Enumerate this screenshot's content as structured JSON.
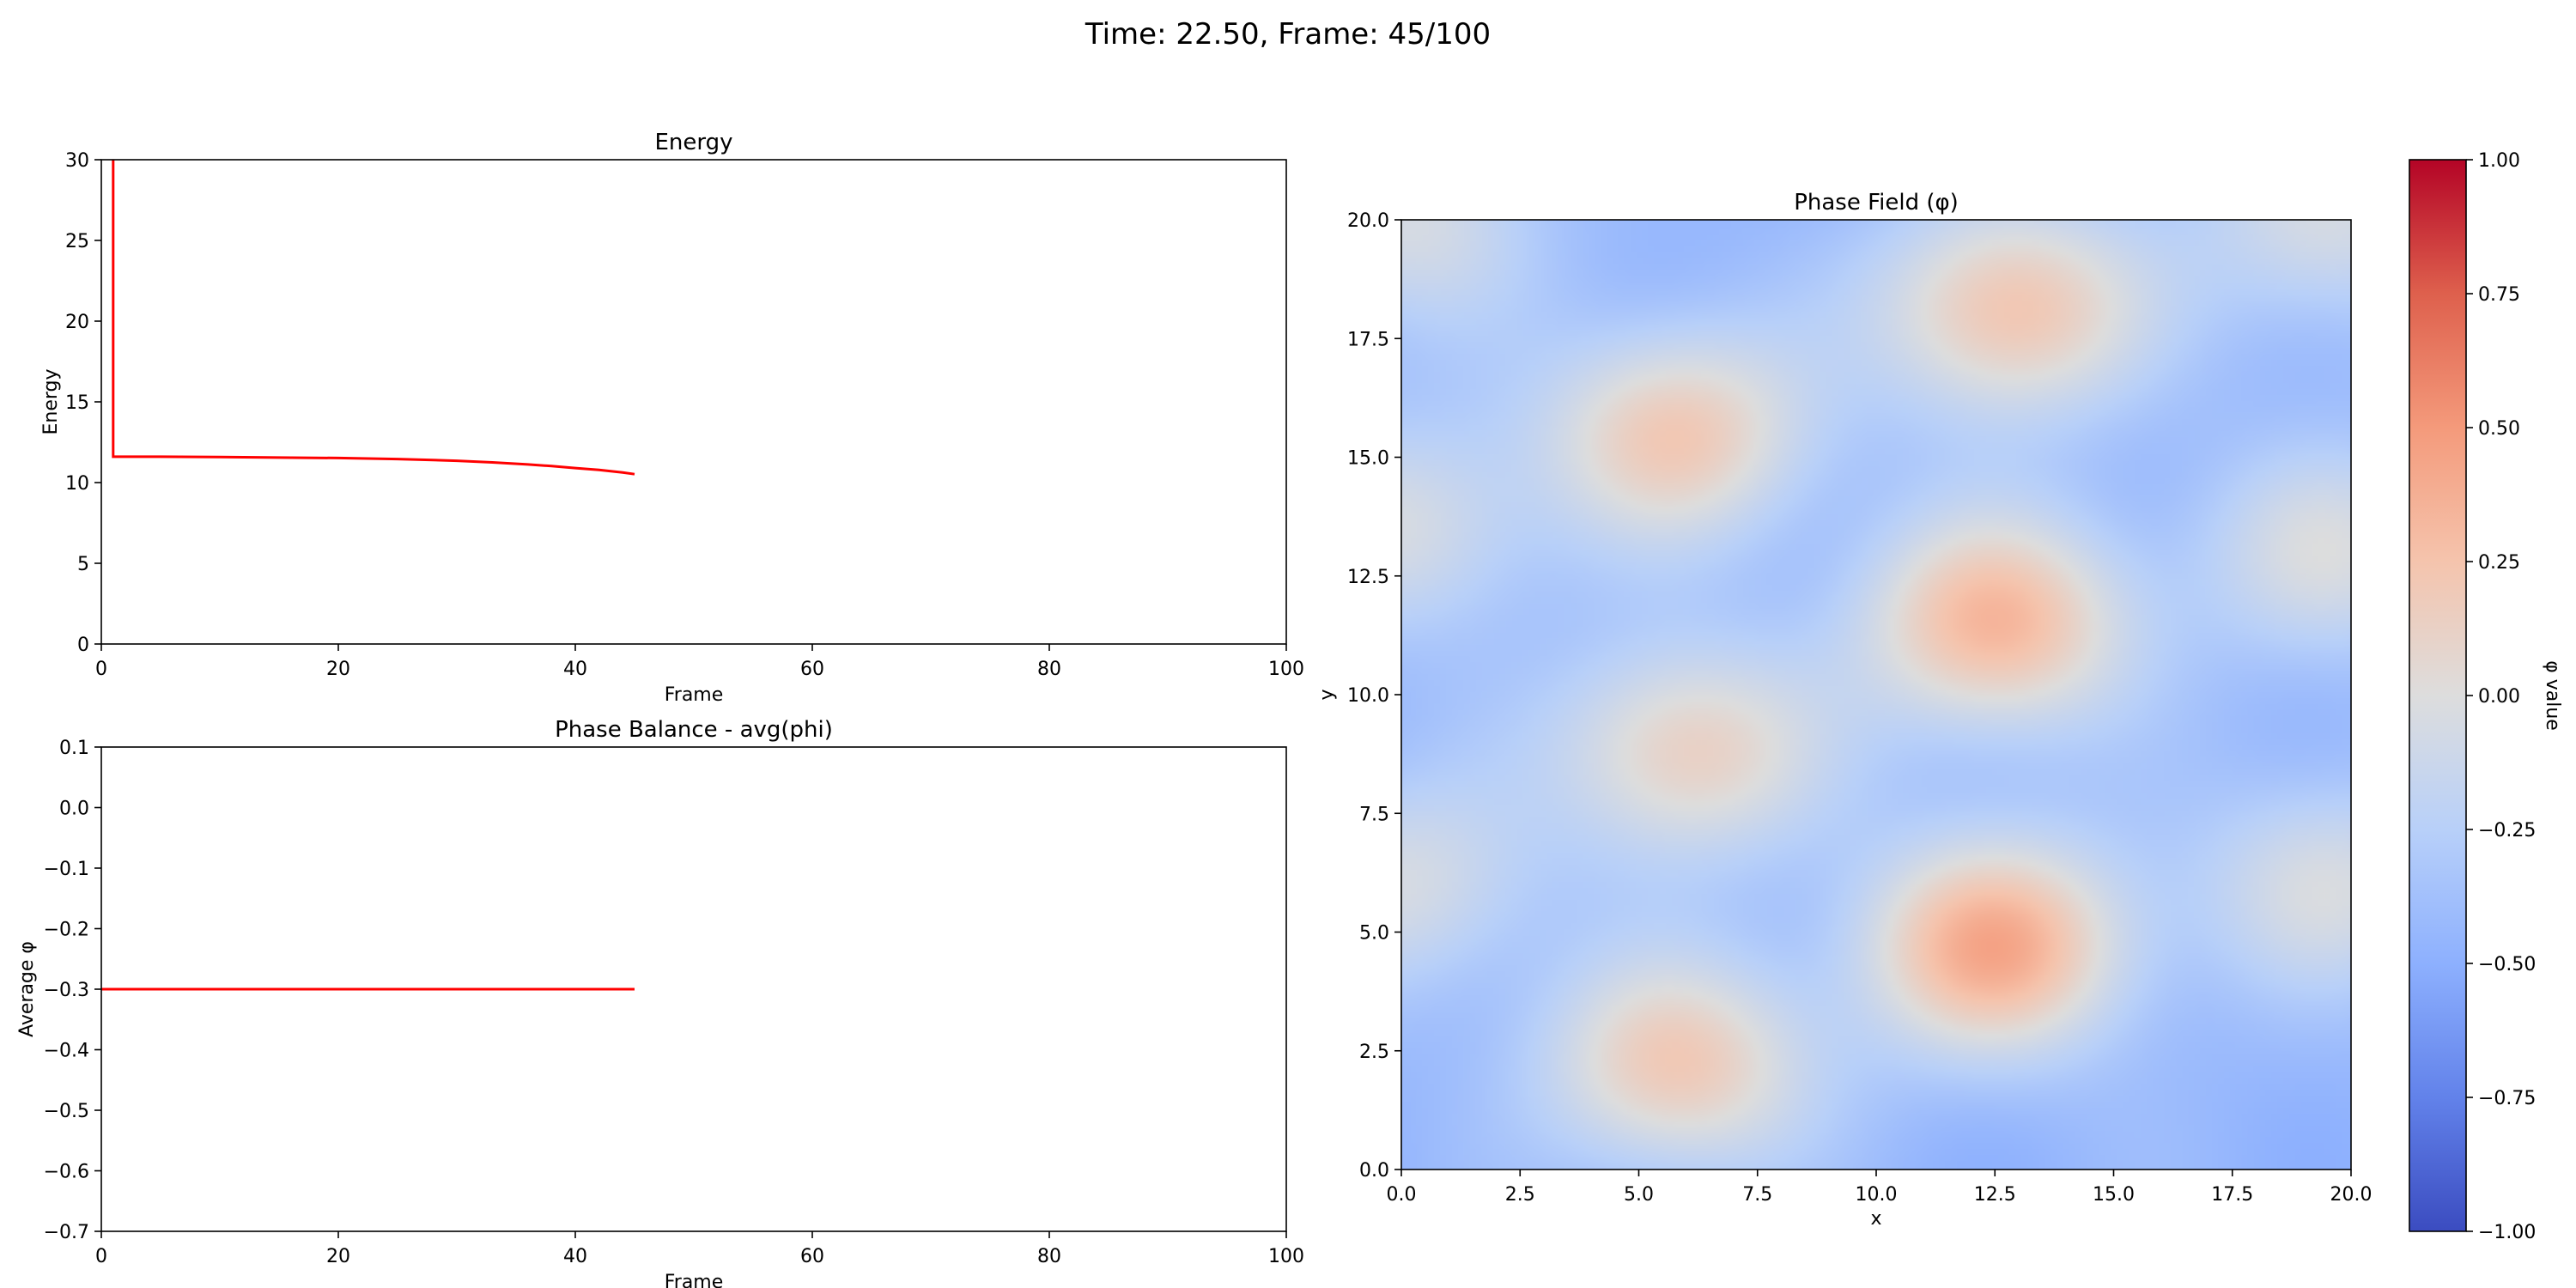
{
  "figure": {
    "suptitle": "Time: 22.50, Frame: 45/100"
  },
  "chart_data": [
    {
      "type": "line",
      "title": "Energy",
      "xlabel": "Frame",
      "ylabel": "Energy",
      "xlim": [
        0,
        100
      ],
      "ylim": [
        0,
        30
      ],
      "xticks": [
        0,
        20,
        40,
        60,
        80,
        100
      ],
      "yticks": [
        0,
        5,
        10,
        15,
        20,
        25,
        30
      ],
      "grid": false,
      "series": [
        {
          "color": "#ff0000",
          "x": [
            0,
            1,
            1,
            5,
            10,
            15,
            20,
            25,
            30,
            33,
            36,
            38,
            40,
            42,
            43,
            44,
            45
          ],
          "y": [
            31,
            30.5,
            11.6,
            11.6,
            11.58,
            11.55,
            11.52,
            11.46,
            11.35,
            11.25,
            11.12,
            11.02,
            10.9,
            10.78,
            10.7,
            10.62,
            10.52
          ]
        }
      ]
    },
    {
      "type": "line",
      "title": "Phase Balance - avg(phi)",
      "xlabel": "Frame",
      "ylabel": "Average φ",
      "xlim": [
        0,
        100
      ],
      "ylim": [
        -0.7,
        0.1
      ],
      "xticks": [
        0,
        20,
        40,
        60,
        80,
        100
      ],
      "yticks": [
        -0.7,
        -0.6,
        -0.5,
        -0.4,
        -0.3,
        -0.2,
        -0.1,
        0.0,
        0.1
      ],
      "grid": false,
      "series": [
        {
          "color": "#ff0000",
          "x": [
            0,
            45
          ],
          "y": [
            -0.3,
            -0.3
          ]
        }
      ]
    },
    {
      "type": "heatmap",
      "title": "Phase Field (φ)",
      "xlabel": "x",
      "ylabel": "y",
      "xlim": [
        0,
        20
      ],
      "ylim": [
        0,
        20
      ],
      "xticks": [
        0.0,
        2.5,
        5.0,
        7.5,
        10.0,
        12.5,
        15.0,
        17.5,
        20.0
      ],
      "yticks": [
        0.0,
        2.5,
        5.0,
        7.5,
        10.0,
        12.5,
        15.0,
        17.5,
        20.0
      ],
      "colormap": "coolwarm",
      "background_value": -0.45,
      "blobs": [
        {
          "x": 5.8,
          "y": 2.2,
          "peak": 0.2
        },
        {
          "x": 6.0,
          "y": 8.8,
          "peak": 0.15
        },
        {
          "x": 5.8,
          "y": 15.5,
          "peak": 0.2
        },
        {
          "x": 12.5,
          "y": 4.7,
          "peak": 0.4
        },
        {
          "x": 12.5,
          "y": 11.5,
          "peak": 0.33
        },
        {
          "x": 12.8,
          "y": 18.1,
          "peak": 0.25
        },
        {
          "x": 0.0,
          "y": 6.0,
          "peak": -0.05
        },
        {
          "x": 0.0,
          "y": 13.5,
          "peak": -0.05
        },
        {
          "x": 0.0,
          "y": 20.0,
          "peak": -0.05
        },
        {
          "x": 19.5,
          "y": 6.0,
          "peak": -0.05
        },
        {
          "x": 19.5,
          "y": 13.0,
          "peak": -0.05
        },
        {
          "x": 19.5,
          "y": 20.0,
          "peak": -0.05
        }
      ],
      "colorbar": {
        "label": "φ value",
        "range": [
          -1.0,
          1.0
        ],
        "ticks": [
          "1.00",
          "0.75",
          "0.50",
          "0.25",
          "0.00",
          "−0.25",
          "−0.50",
          "−0.75",
          "−1.00"
        ]
      }
    }
  ]
}
